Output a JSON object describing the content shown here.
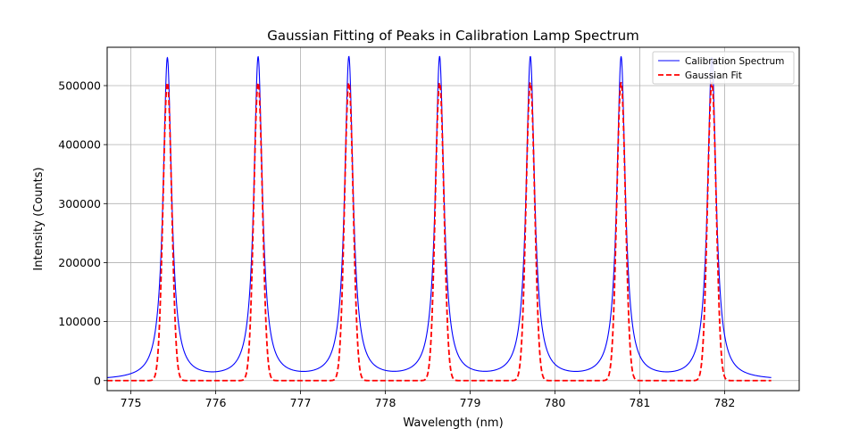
{
  "chart_data": {
    "type": "line",
    "title": "Gaussian Fitting of Peaks in Calibration Lamp Spectrum",
    "xlabel": "Wavelength (nm)",
    "ylabel": "Intensity (Counts)",
    "xlim": [
      774.72,
      782.88
    ],
    "ylim": [
      -17000,
      565000
    ],
    "xticks": [
      775,
      776,
      777,
      778,
      779,
      780,
      781,
      782
    ],
    "xtick_labels": [
      "775",
      "776",
      "777",
      "778",
      "779",
      "780",
      "781",
      "782"
    ],
    "yticks": [
      0,
      100000,
      200000,
      300000,
      400000,
      500000
    ],
    "ytick_labels": [
      "0",
      "100000",
      "200000",
      "300000",
      "400000",
      "500000"
    ],
    "grid": true,
    "legend_position": "upper right",
    "series": [
      {
        "name": "Calibration Spectrum",
        "color": "#0000ff",
        "style": "solid",
        "x_range": [
          774.72,
          782.55
        ],
        "peak_centers": [
          775.43,
          776.5,
          777.57,
          778.64,
          779.71,
          780.78,
          781.85
        ],
        "peak_height": 545000,
        "peak_profile": "lorentzian",
        "fwhm_nm": 0.12
      },
      {
        "name": "Gaussian Fit",
        "color": "#ff0000",
        "style": "dashed",
        "x_range": [
          774.72,
          782.55
        ],
        "peak_centers": [
          775.43,
          776.5,
          777.57,
          778.64,
          779.71,
          780.78,
          781.85
        ],
        "peak_height": 505000,
        "peak_profile": "gaussian",
        "fwhm_nm": 0.12
      }
    ]
  }
}
